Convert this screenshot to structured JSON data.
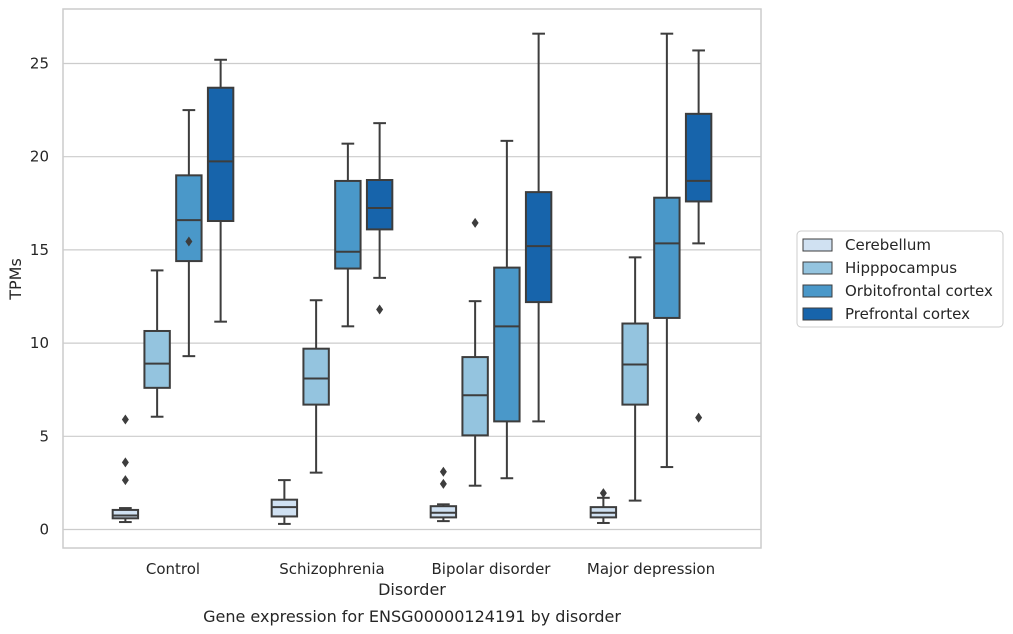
{
  "chart_data": {
    "type": "box",
    "title": "",
    "caption": "Gene expression for ENSG00000124191 by disorder",
    "xlabel": "Disorder",
    "ylabel": "TPMs",
    "ylim": [
      -1,
      28
    ],
    "yticks": [
      0,
      5,
      10,
      15,
      20,
      25
    ],
    "grid": "horizontal",
    "legend_position": "right",
    "categories": [
      "Control",
      "Schizophrenia",
      "Bipolar disorder",
      "Major depression"
    ],
    "series": [
      {
        "name": "Cerebellum",
        "color": "#d0e1f2",
        "boxes": [
          {
            "whisker_low": 0.4,
            "q1": 0.6,
            "median": 0.75,
            "q3": 1.05,
            "whisker_high": 1.15,
            "outliers": [
              5.9,
              3.6,
              2.65
            ]
          },
          {
            "whisker_low": 0.3,
            "q1": 0.7,
            "median": 1.2,
            "q3": 1.6,
            "whisker_high": 2.65,
            "outliers": []
          },
          {
            "whisker_low": 0.45,
            "q1": 0.65,
            "median": 0.9,
            "q3": 1.25,
            "whisker_high": 1.35,
            "outliers": [
              3.1,
              2.45
            ]
          },
          {
            "whisker_low": 0.35,
            "q1": 0.65,
            "median": 0.9,
            "q3": 1.2,
            "whisker_high": 1.7,
            "outliers": [
              1.95
            ]
          }
        ]
      },
      {
        "name": "Hipppocampus",
        "color": "#94c4df",
        "boxes": [
          {
            "whisker_low": 6.05,
            "q1": 7.6,
            "median": 8.9,
            "q3": 10.65,
            "whisker_high": 13.9,
            "outliers": []
          },
          {
            "whisker_low": 3.05,
            "q1": 6.7,
            "median": 8.1,
            "q3": 9.7,
            "whisker_high": 12.3,
            "outliers": []
          },
          {
            "whisker_low": 2.35,
            "q1": 5.05,
            "median": 7.2,
            "q3": 9.25,
            "whisker_high": 12.25,
            "outliers": [
              16.45
            ]
          },
          {
            "whisker_low": 1.55,
            "q1": 6.7,
            "median": 8.85,
            "q3": 11.05,
            "whisker_high": 14.6,
            "outliers": []
          }
        ]
      },
      {
        "name": "Orbitofrontal cortex",
        "color": "#4a98c9",
        "boxes": [
          {
            "whisker_low": 9.3,
            "q1": 14.4,
            "median": 16.6,
            "q3": 19.0,
            "whisker_high": 22.5,
            "outliers": [
              15.45
            ]
          },
          {
            "whisker_low": 10.9,
            "q1": 14.0,
            "median": 14.9,
            "q3": 18.7,
            "whisker_high": 20.7,
            "outliers": []
          },
          {
            "whisker_low": 2.75,
            "q1": 5.8,
            "median": 10.9,
            "q3": 14.05,
            "whisker_high": 20.85,
            "outliers": []
          },
          {
            "whisker_low": 3.35,
            "q1": 11.35,
            "median": 15.35,
            "q3": 17.8,
            "whisker_high": 26.6,
            "outliers": []
          }
        ]
      },
      {
        "name": "Prefrontal cortex",
        "color": "#1764ab",
        "boxes": [
          {
            "whisker_low": 11.15,
            "q1": 16.55,
            "median": 19.75,
            "q3": 23.7,
            "whisker_high": 25.2,
            "outliers": []
          },
          {
            "whisker_low": 13.5,
            "q1": 16.1,
            "median": 17.25,
            "q3": 18.75,
            "whisker_high": 21.8,
            "outliers": [
              11.8
            ]
          },
          {
            "whisker_low": 5.8,
            "q1": 12.2,
            "median": 15.2,
            "q3": 18.1,
            "whisker_high": 26.6,
            "outliers": []
          },
          {
            "whisker_low": 15.35,
            "q1": 17.6,
            "median": 18.7,
            "q3": 22.3,
            "whisker_high": 25.7,
            "outliers": [
              6.0
            ]
          }
        ]
      }
    ]
  }
}
